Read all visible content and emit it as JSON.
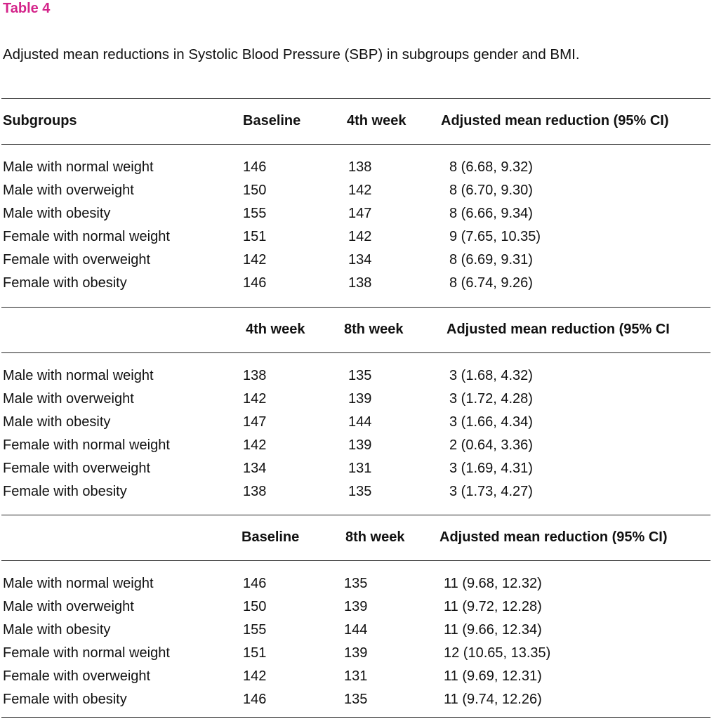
{
  "title": "Table 4",
  "caption": "Adjusted mean reductions in Systolic Blood Pressure (SBP) in subgroups gender and BMI.",
  "sections": [
    {
      "header": [
        "Subgroups",
        "Baseline",
        "4th week",
        "Adjusted mean reduction (95% CI)"
      ],
      "rows": [
        [
          "Male with normal weight",
          "146",
          "138",
          "8 (6.68, 9.32)"
        ],
        [
          "Male with overweight",
          "150",
          "142",
          "8 (6.70, 9.30)"
        ],
        [
          "Male with obesity",
          "155",
          "147",
          "8 (6.66, 9.34)"
        ],
        [
          "Female with normal weight",
          "151",
          "142",
          "9 (7.65, 10.35)"
        ],
        [
          "Female with overweight",
          "142",
          "134",
          "8 (6.69, 9.31)"
        ],
        [
          "Female with obesity",
          "146",
          "138",
          "8 (6.74, 9.26)"
        ]
      ]
    },
    {
      "header": [
        "4th week",
        "8th week",
        "Adjusted mean reduction (95% CI"
      ],
      "rows": [
        [
          "Male with normal weight",
          "138",
          "135",
          "3 (1.68, 4.32)"
        ],
        [
          "Male with overweight",
          "142",
          "139",
          "3 (1.72, 4.28)"
        ],
        [
          "Male with obesity",
          "147",
          "144",
          "3 (1.66, 4.34)"
        ],
        [
          "Female with normal weight",
          "142",
          "139",
          "2 (0.64, 3.36)"
        ],
        [
          "Female with overweight",
          "134",
          "131",
          "3 (1.69, 4.31)"
        ],
        [
          "Female with obesity",
          "138",
          "135",
          "3 (1.73, 4.27)"
        ]
      ]
    },
    {
      "header": [
        "Baseline",
        "8th week",
        "Adjusted mean reduction (95% CI)"
      ],
      "rows": [
        [
          "Male with normal weight",
          "146",
          "135",
          "11 (9.68, 12.32)"
        ],
        [
          "Male with overweight",
          "150",
          "139",
          "11 (9.72, 12.28)"
        ],
        [
          "Male with obesity",
          "155",
          "144",
          "11 (9.66, 12.34)"
        ],
        [
          "Female with normal weight",
          "151",
          "139",
          "12 (10.65, 13.35)"
        ],
        [
          "Female with overweight",
          "142",
          "131",
          "11 (9.69, 12.31)"
        ],
        [
          "Female with obesity",
          "146",
          "135",
          "11 (9.74, 12.26)"
        ]
      ]
    }
  ]
}
